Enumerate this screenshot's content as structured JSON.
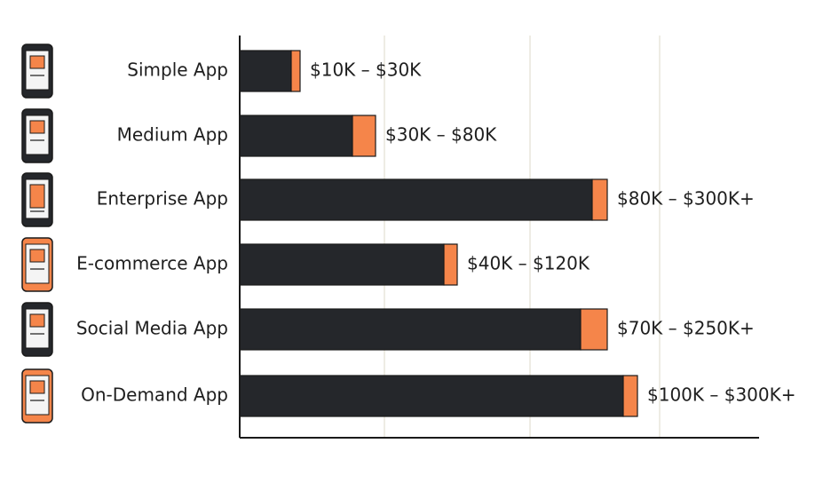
{
  "chart_data": {
    "type": "stacked-bar-h",
    "categories": [
      "Simple App",
      "Medium App",
      "Enterprise App",
      "E-commerce App",
      "Social Media App",
      "On-Demand App"
    ],
    "series": [
      {
        "color": "#25272b",
        "values": [
          58,
          127,
          397,
          230,
          384,
          432
        ]
      },
      {
        "color": "#f5854a",
        "values": [
          10,
          26,
          17,
          15,
          30,
          16
        ]
      }
    ],
    "annotations": [
      "$10K – $30K",
      "$30K – $80K",
      "$80K – $300K+",
      "$40K – $120K",
      "$70K – $250K+",
      "$100K – $300K+"
    ],
    "xlim": [
      0,
      585
    ]
  }
}
